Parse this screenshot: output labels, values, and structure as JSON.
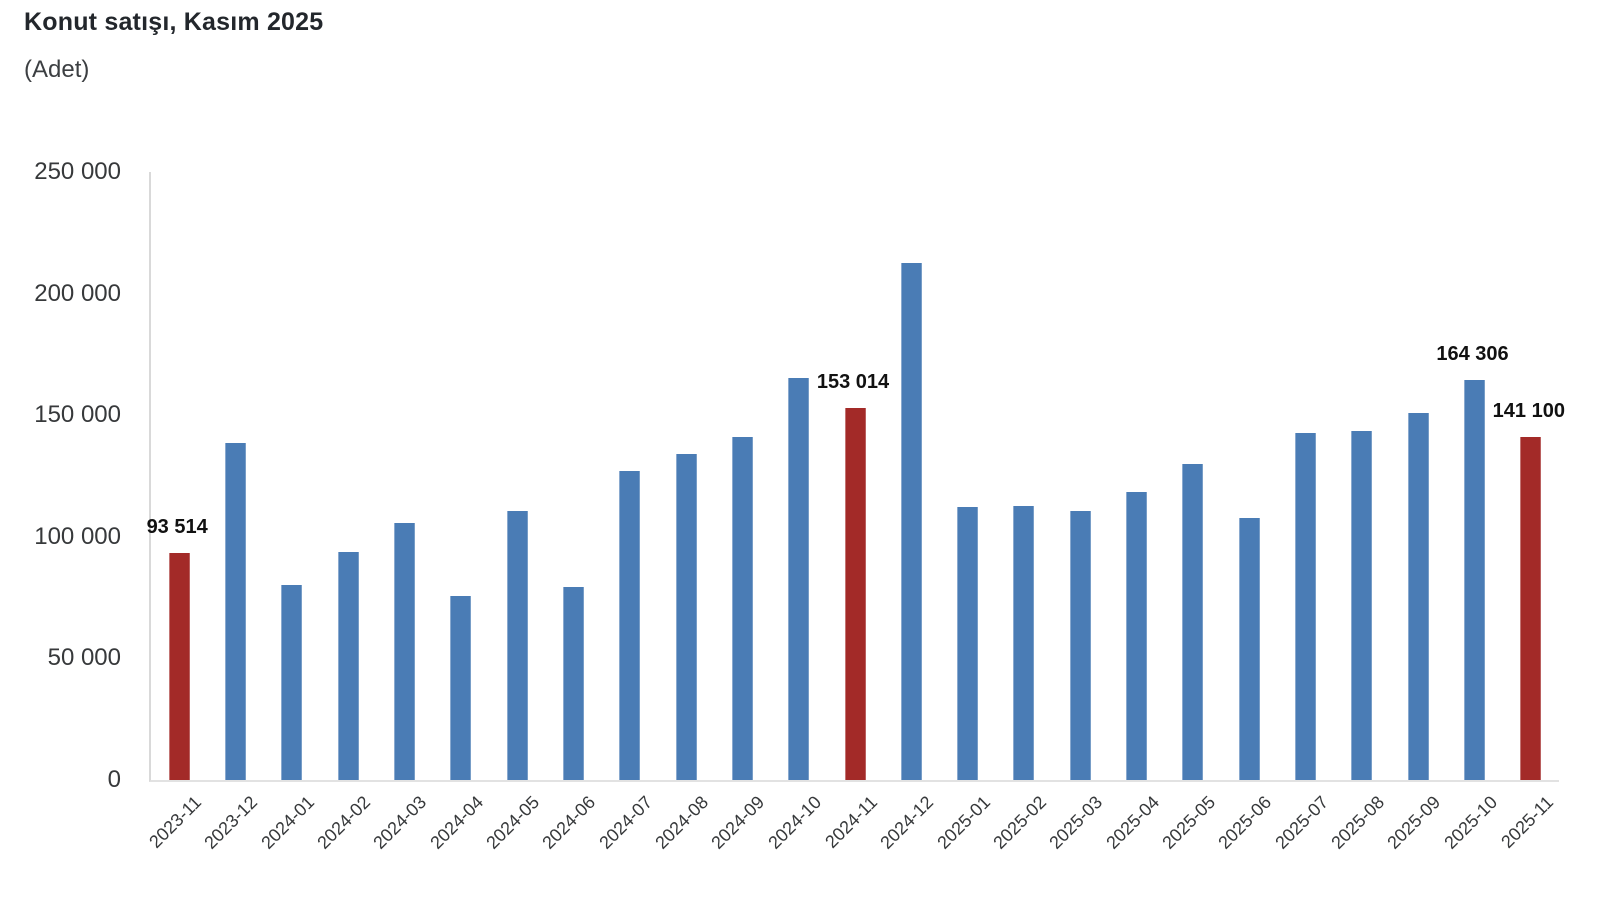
{
  "header": {
    "title": "Konut satışı, Kasım 2025",
    "subtitle": "(Adet)"
  },
  "colors": {
    "bar_default": "#4a7cb5",
    "bar_highlight": "#a32a28",
    "axis_line": "#d9d9d9",
    "axis_text": "#37393b",
    "data_label_text": "#111111"
  },
  "chart_data": {
    "type": "bar",
    "title": "Konut satışı, Kasım 2025",
    "subtitle": "(Adet)",
    "xlabel": "",
    "ylabel": "",
    "ylim": [
      0,
      250000
    ],
    "grid": false,
    "legend": "none",
    "yticks": [
      {
        "value": 0,
        "label": "0"
      },
      {
        "value": 50000,
        "label": "50 000"
      },
      {
        "value": 100000,
        "label": "100 000"
      },
      {
        "value": 150000,
        "label": "150 000"
      },
      {
        "value": 200000,
        "label": "200 000"
      },
      {
        "value": 250000,
        "label": "250 000"
      }
    ],
    "categories": [
      "2023-11",
      "2023-12",
      "2024-01",
      "2024-02",
      "2024-03",
      "2024-04",
      "2024-05",
      "2024-06",
      "2024-07",
      "2024-08",
      "2024-09",
      "2024-10",
      "2024-11",
      "2024-12",
      "2025-01",
      "2025-02",
      "2025-03",
      "2025-04",
      "2025-05",
      "2025-06",
      "2025-07",
      "2025-08",
      "2025-09",
      "2025-10",
      "2025-11"
    ],
    "values": [
      93514,
      138577,
      80308,
      93902,
      105476,
      75569,
      110588,
      79313,
      127088,
      134155,
      140919,
      165138,
      153014,
      212637,
      112173,
      112818,
      110795,
      118359,
      130025,
      107723,
      142858,
      143319,
      150963,
      164306,
      141100
    ],
    "highlight_indices": [
      0,
      12,
      24
    ],
    "data_labels": [
      {
        "index": 0,
        "text": "93 514"
      },
      {
        "index": 12,
        "text": "153 014"
      },
      {
        "index": 23,
        "text": "164 306"
      },
      {
        "index": 24,
        "text": "141 100"
      }
    ]
  }
}
